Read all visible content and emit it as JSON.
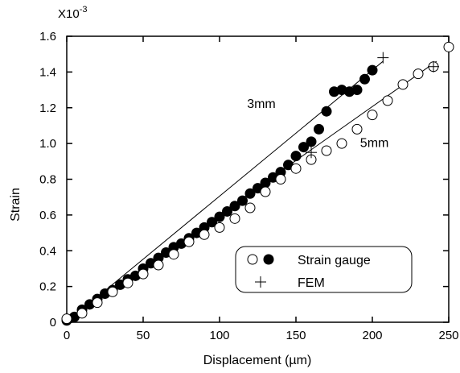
{
  "chart_data": {
    "type": "scatter",
    "xlabel": "Displacement (µm)",
    "ylabel": "Strain",
    "y_multiplier_label": "X10",
    "y_multiplier_exponent": "-3",
    "xlim": [
      0,
      250
    ],
    "ylim": [
      0,
      1.6
    ],
    "x_ticks": [
      0,
      50,
      100,
      150,
      200,
      250
    ],
    "x_tick_labels": [
      "0",
      "50",
      "100",
      "150",
      "200",
      "250"
    ],
    "y_ticks": [
      0,
      0.2,
      0.4,
      0.6,
      0.8,
      1.0,
      1.2,
      1.4,
      1.6
    ],
    "y_tick_labels": [
      "0",
      "0.2",
      "0.4",
      "0.6",
      "0.8",
      "1.0",
      "1.2",
      "1.4",
      "1.6"
    ],
    "annotations": [
      {
        "text": "3mm",
        "x": 118,
        "y": 1.2
      },
      {
        "text": "5mm",
        "x": 192,
        "y": 0.98
      }
    ],
    "legend": {
      "position": "lower-right",
      "entries": [
        {
          "label": "Strain gauge",
          "markers": [
            "open-circle",
            "filled-circle"
          ]
        },
        {
          "label": "FEM",
          "markers": [
            "plus"
          ]
        }
      ]
    },
    "series": [
      {
        "marker": "filled-circle",
        "x": [
          0,
          5,
          10,
          15,
          20,
          25,
          30,
          35,
          40,
          45,
          50,
          55,
          60,
          65,
          70,
          75,
          80,
          85,
          90,
          95,
          100,
          105,
          110,
          115,
          120,
          125,
          130,
          135,
          140,
          145,
          150,
          155,
          160,
          165,
          170,
          175,
          180,
          185,
          190,
          195,
          200
        ],
        "y": [
          0.01,
          0.03,
          0.07,
          0.1,
          0.13,
          0.16,
          0.18,
          0.21,
          0.24,
          0.26,
          0.3,
          0.33,
          0.36,
          0.39,
          0.42,
          0.44,
          0.47,
          0.5,
          0.53,
          0.56,
          0.59,
          0.62,
          0.65,
          0.68,
          0.72,
          0.75,
          0.78,
          0.81,
          0.84,
          0.88,
          0.93,
          0.98,
          1.01,
          1.08,
          1.18,
          1.29,
          1.3,
          1.29,
          1.3,
          1.36,
          1.41
        ]
      },
      {
        "marker": "open-circle",
        "x": [
          0,
          10,
          20,
          30,
          40,
          50,
          60,
          70,
          80,
          90,
          100,
          110,
          120,
          130,
          140,
          150,
          160,
          170,
          180,
          190,
          200,
          210,
          220,
          230,
          240,
          250
        ],
        "y": [
          0.02,
          0.05,
          0.11,
          0.17,
          0.22,
          0.27,
          0.32,
          0.38,
          0.45,
          0.49,
          0.53,
          0.58,
          0.64,
          0.73,
          0.8,
          0.86,
          0.91,
          0.96,
          1.0,
          1.08,
          1.16,
          1.24,
          1.33,
          1.39,
          1.43,
          1.54
        ]
      },
      {
        "marker": "plus",
        "x": [
          207,
          160,
          240
        ],
        "y": [
          1.48,
          0.95,
          1.43
        ]
      }
    ],
    "fit_lines": [
      {
        "for": "3mm",
        "x": [
          0,
          207
        ],
        "y": [
          0,
          1.46
        ]
      },
      {
        "for": "5mm",
        "x": [
          0,
          242
        ],
        "y": [
          0,
          1.46
        ]
      }
    ]
  }
}
